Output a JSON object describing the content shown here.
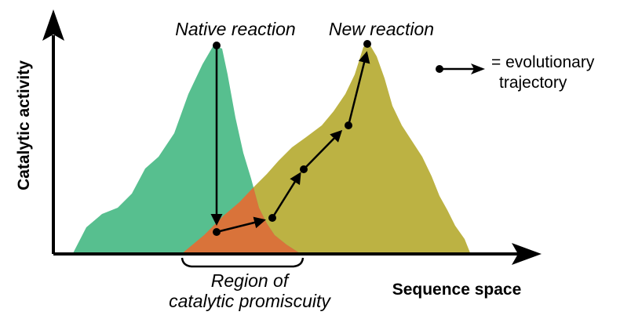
{
  "labels": {
    "native_reaction": "Native reaction",
    "new_reaction": "New reaction",
    "y_axis": "Catalytic activity",
    "x_axis": "Sequence space",
    "region_line1": "Region of",
    "region_line2": "catalytic promiscuity",
    "legend_line1": "= evolutionary",
    "legend_line2": "trajectory"
  },
  "colors": {
    "native_peak": "#57bf8f",
    "new_peak": "#bcb243",
    "overlap": "#d9733a",
    "axis": "#000000",
    "trajectory": "#000000"
  },
  "icons": {
    "trajectory_legend": "dot-arrow-icon"
  }
}
